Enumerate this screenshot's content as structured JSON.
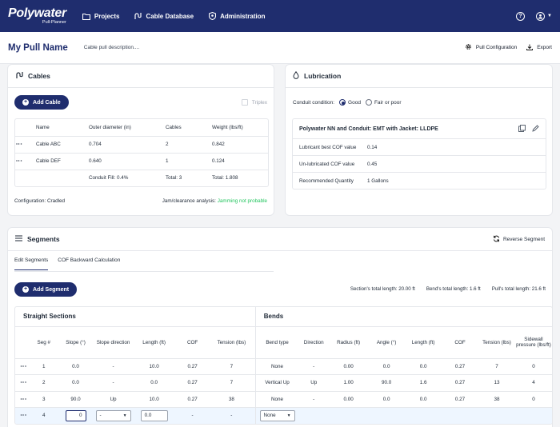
{
  "nav": {
    "logo": "Polywater",
    "logo_sub": "Pull-Planner",
    "items": [
      {
        "label": "Projects",
        "icon": "folder-icon"
      },
      {
        "label": "Cable Database",
        "icon": "cable-icon"
      },
      {
        "label": "Administration",
        "icon": "shield-icon"
      }
    ],
    "help_icon": "help-icon",
    "user_icon": "user-icon"
  },
  "header": {
    "title": "My Pull Name",
    "description": "Cable pull description....",
    "pull_config_label": "Pull Configuration",
    "export_label": "Export"
  },
  "cables": {
    "title": "Cables",
    "add_label": "Add Cable",
    "triplex_label": "Triplex",
    "columns": [
      "Name",
      "Outer diameter (in)",
      "Cables",
      "Weight (lbs/ft)"
    ],
    "rows": [
      {
        "name": "Cable ABC",
        "od": "0.704",
        "cables": "2",
        "weight": "0.842"
      },
      {
        "name": "Cable DEF",
        "od": "0.640",
        "cables": "1",
        "weight": "0.124"
      }
    ],
    "fill_label": "Conduit Fill: 0.4%",
    "total_label": "Total: 3",
    "total_weight": "Total: 1.808",
    "configuration_label": "Configuration:",
    "configuration_value": "Cradled",
    "jam_label": "Jam/clearance analysis:",
    "jam_value": "Jamming not probable"
  },
  "lubrication": {
    "title": "Lubrication",
    "condition_label": "Conduit condition:",
    "option_good": "Good",
    "option_fair": "Fair or poor",
    "product": "Polywater NN and Conduit: EMT with Jacket: LLDPE",
    "rows": [
      {
        "k": "Lubricant best COF value",
        "v": "0.14"
      },
      {
        "k": "Un-lubricated COF value",
        "v": "0.45"
      },
      {
        "k": "Recommended Quantity",
        "v": "1 Gallons"
      }
    ]
  },
  "segments": {
    "title": "Segments",
    "reverse_label": "Reverse Segment",
    "tabs": [
      "Edit Segments",
      "COF Backward Calculation"
    ],
    "add_label": "Add Segment",
    "section_total": "Section's total length: 20.00 ft",
    "bend_total": "Bend's total length: 1.6 ft",
    "pull_total": "Pull's total length: 21.6 ft",
    "straight_title": "Straight Sections",
    "bends_title": "Bends",
    "columns": [
      "Seg #",
      "Slope (°)",
      "Slope direction",
      "Length (ft)",
      "COF",
      "Tension (lbs)",
      "Bend type",
      "Direction",
      "Radius (ft)",
      "Angle (°)",
      "Length (ft)",
      "COF",
      "Tension (lbs)",
      "Sidewall pressure (lbs/ft)"
    ],
    "rows": [
      [
        "1",
        "0.0",
        "-",
        "10.0",
        "0.27",
        "7",
        "None",
        "-",
        "0.00",
        "0.0",
        "0.0",
        "0.27",
        "7",
        "0"
      ],
      [
        "2",
        "0.0",
        "-",
        "0.0",
        "0.27",
        "7",
        "Vertical Up",
        "Up",
        "1.00",
        "90.0",
        "1.6",
        "0.27",
        "13",
        "4"
      ],
      [
        "3",
        "90.0",
        "Up",
        "10.0",
        "0.27",
        "38",
        "None",
        "-",
        "0.00",
        "0.0",
        "0.0",
        "0.27",
        "38",
        "0"
      ]
    ],
    "edit_row": {
      "seg": "4",
      "slope": "0",
      "slope_dir": "-",
      "length": "0.0",
      "cof": "-",
      "tension": "-",
      "bend_type": "None"
    }
  }
}
